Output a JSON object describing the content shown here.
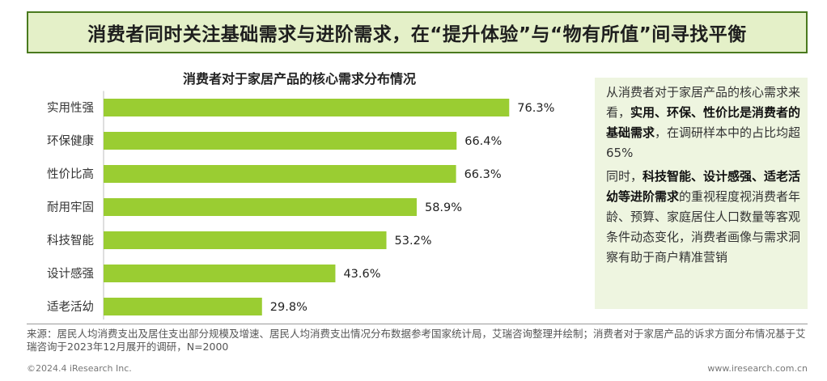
{
  "header": {
    "title": "消费者同时关注基础需求与进阶需求，在“提升体验”与“物有所值”间寻找平衡"
  },
  "chart_data": {
    "type": "bar",
    "orientation": "horizontal",
    "title": "消费者对于家居产品的核心需求分布情况",
    "categories": [
      "实用性强",
      "环保健康",
      "性价比高",
      "耐用牢固",
      "科技智能",
      "设计感强",
      "适老活幼"
    ],
    "values": [
      76.3,
      66.4,
      66.3,
      58.9,
      53.2,
      43.6,
      29.8
    ],
    "value_labels": [
      "76.3%",
      "66.4%",
      "66.3%",
      "58.9%",
      "53.2%",
      "43.6%",
      "29.8%"
    ],
    "unit": "%",
    "xlim": [
      0,
      100
    ],
    "bar_color": "#9acd32",
    "grid": false,
    "legend": "none"
  },
  "note": {
    "p1_a": "从消费者对于家居产品的核心需求来看，",
    "p1_b": "实用、环保、性价比是消费者的基础需求",
    "p1_c": "，在调研样本中的占比均超65%",
    "p2_a": "同时，",
    "p2_b": "科技智能、设计感强、适老活幼等进阶需求",
    "p2_c": "的重视程度视消费者年龄、预算、家庭居住人口数量等客观条件动态变化，消费者画像与需求洞察有助于商户精准营销"
  },
  "source": {
    "text": "来源：居民人均消费支出及居住支出部分规模及增速、居民人均消费支出情况分布数据参考国家统计局，艾瑞咨询整理并绘制；消费者对于家居产品的诉求方面分布情况基于艾瑞咨询于2023年12月展开的调研，N=2000"
  },
  "footer": {
    "left": "©2024.4 iResearch Inc.",
    "right": "www.iresearch.com.cn"
  },
  "colors": {
    "accent": "#4a7a1e",
    "banner_bg": "#e4f0c8",
    "note_bg": "#eef5e0"
  }
}
